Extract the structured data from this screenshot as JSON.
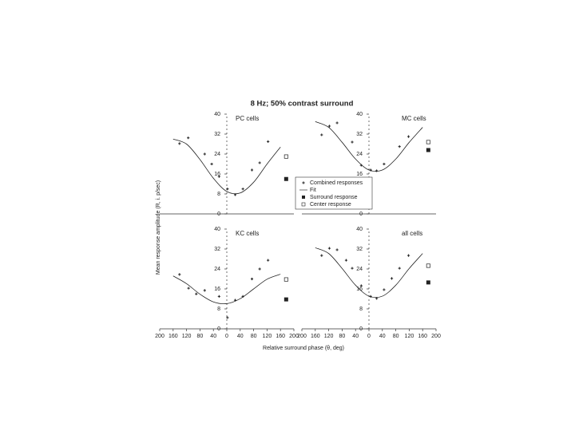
{
  "figure": {
    "title": "8 Hz; 50% contrast surround",
    "x_label": "Relative surround phase (θ, deg)",
    "y_label": "Mean response amplitude (R, i. p/sec)"
  },
  "chart_data": [
    {
      "type": "scatter",
      "title": "PC cells",
      "xlim": [
        -200,
        200
      ],
      "ylim": [
        0,
        40
      ],
      "yticks": [
        0,
        8,
        16,
        24,
        32,
        40
      ],
      "series": [
        {
          "name": "Combined responses",
          "color": "#222",
          "x": [
            -141,
            -115,
            -66,
            -45,
            -23,
            2,
            25,
            48,
            75,
            98,
            123
          ],
          "values": [
            28.2,
            30.5,
            24,
            20,
            15,
            10,
            7.7,
            10,
            17.6,
            20.5,
            29
          ]
        },
        {
          "name": "Fit",
          "color": "#222",
          "x": [
            -160,
            -120,
            -80,
            -40,
            0,
            40,
            80,
            120,
            160
          ],
          "values": [
            30.0,
            28.0,
            21.8,
            14.3,
            9.0,
            8.4,
            12.7,
            20.0,
            26.8
          ]
        },
        {
          "name": "Surround response",
          "color": "#222",
          "x": [
            177
          ],
          "values": [
            14
          ]
        },
        {
          "name": "Center response",
          "color": "#222",
          "x": [
            177
          ],
          "values": [
            23
          ]
        }
      ]
    },
    {
      "type": "scatter",
      "title": "MC cells",
      "xlim": [
        -200,
        200
      ],
      "ylim": [
        0,
        40
      ],
      "yticks": [
        0,
        8,
        16,
        24,
        32,
        40
      ],
      "series": [
        {
          "name": "Combined responses",
          "color": "#222",
          "x": [
            -141,
            -118,
            -95,
            -50,
            -23,
            5,
            23,
            45,
            91,
            118
          ],
          "values": [
            31.7,
            35.2,
            36.5,
            28.8,
            19.5,
            17.6,
            17.3,
            20,
            27,
            31
          ]
        },
        {
          "name": "Fit",
          "color": "#222",
          "x": [
            -160,
            -120,
            -80,
            -40,
            0,
            40,
            80,
            120,
            160
          ],
          "values": [
            37,
            34.7,
            28.7,
            22,
            17.6,
            17.6,
            22,
            28.7,
            34.7
          ]
        },
        {
          "name": "Surround response",
          "color": "#222",
          "x": [
            177
          ],
          "values": [
            25.6
          ]
        },
        {
          "name": "Center response",
          "color": "#222",
          "x": [
            177
          ],
          "values": [
            28.8
          ]
        }
      ]
    },
    {
      "type": "scatter",
      "title": "KC cells",
      "xlim": [
        -200,
        200
      ],
      "ylim": [
        0,
        40
      ],
      "yticks": [
        0,
        8,
        16,
        24,
        32,
        40
      ],
      "xticks": [
        {
          "value": -200,
          "label": "200"
        },
        {
          "value": -160,
          "label": "160"
        },
        {
          "value": -120,
          "label": "120"
        },
        {
          "value": -80,
          "label": "80"
        },
        {
          "value": -40,
          "label": "40"
        },
        0,
        40,
        80,
        120,
        160,
        200
      ],
      "series": [
        {
          "name": "Combined responses",
          "color": "#222",
          "x": [
            -141,
            -114,
            -91,
            -66,
            -23,
            2,
            25,
            48,
            75,
            98,
            123
          ],
          "values": [
            21.8,
            16.3,
            14,
            15.4,
            13,
            4.5,
            11.5,
            13,
            20,
            24,
            27.5
          ]
        },
        {
          "name": "Fit",
          "color": "#222",
          "x": [
            -160,
            -120,
            -80,
            -40,
            0,
            40,
            80,
            120,
            160
          ],
          "values": [
            21.2,
            18.1,
            13.9,
            10.8,
            10.1,
            12.1,
            16,
            19.9,
            21.9
          ]
        },
        {
          "name": "Surround response",
          "color": "#222",
          "x": [
            177
          ],
          "values": [
            11.8
          ]
        },
        {
          "name": "Center response",
          "color": "#222",
          "x": [
            177
          ],
          "values": [
            19.8
          ]
        }
      ]
    },
    {
      "type": "scatter",
      "title": "all cells",
      "xlim": [
        -200,
        200
      ],
      "ylim": [
        0,
        40
      ],
      "yticks": [
        0,
        8,
        16,
        24,
        32,
        40
      ],
      "xticks": [
        {
          "value": -200,
          "label": "200"
        },
        {
          "value": -160,
          "label": "160"
        },
        {
          "value": -120,
          "label": "120"
        },
        {
          "value": -80,
          "label": "80"
        },
        {
          "value": -40,
          "label": "40"
        },
        0,
        40,
        80,
        120,
        160,
        200
      ],
      "series": [
        {
          "name": "Combined responses",
          "color": "#222",
          "x": [
            -141,
            -118,
            -95,
            -68,
            -50,
            -23,
            5,
            23,
            45,
            68,
            91,
            118
          ],
          "values": [
            29.4,
            32.3,
            31.7,
            27.5,
            24.3,
            17.3,
            13,
            12.2,
            15.7,
            20.2,
            24.3,
            29.4
          ]
        },
        {
          "name": "Fit",
          "color": "#222",
          "x": [
            -160,
            -120,
            -80,
            -40,
            0,
            40,
            80,
            120,
            160
          ],
          "values": [
            32.5,
            30.2,
            24.2,
            17.5,
            13.1,
            13.1,
            17.5,
            24.2,
            30.2
          ]
        },
        {
          "name": "Surround response",
          "color": "#222",
          "x": [
            177
          ],
          "values": [
            18.6
          ]
        },
        {
          "name": "Center response",
          "color": "#222",
          "x": [
            177
          ],
          "values": [
            25.3
          ]
        }
      ]
    }
  ]
}
